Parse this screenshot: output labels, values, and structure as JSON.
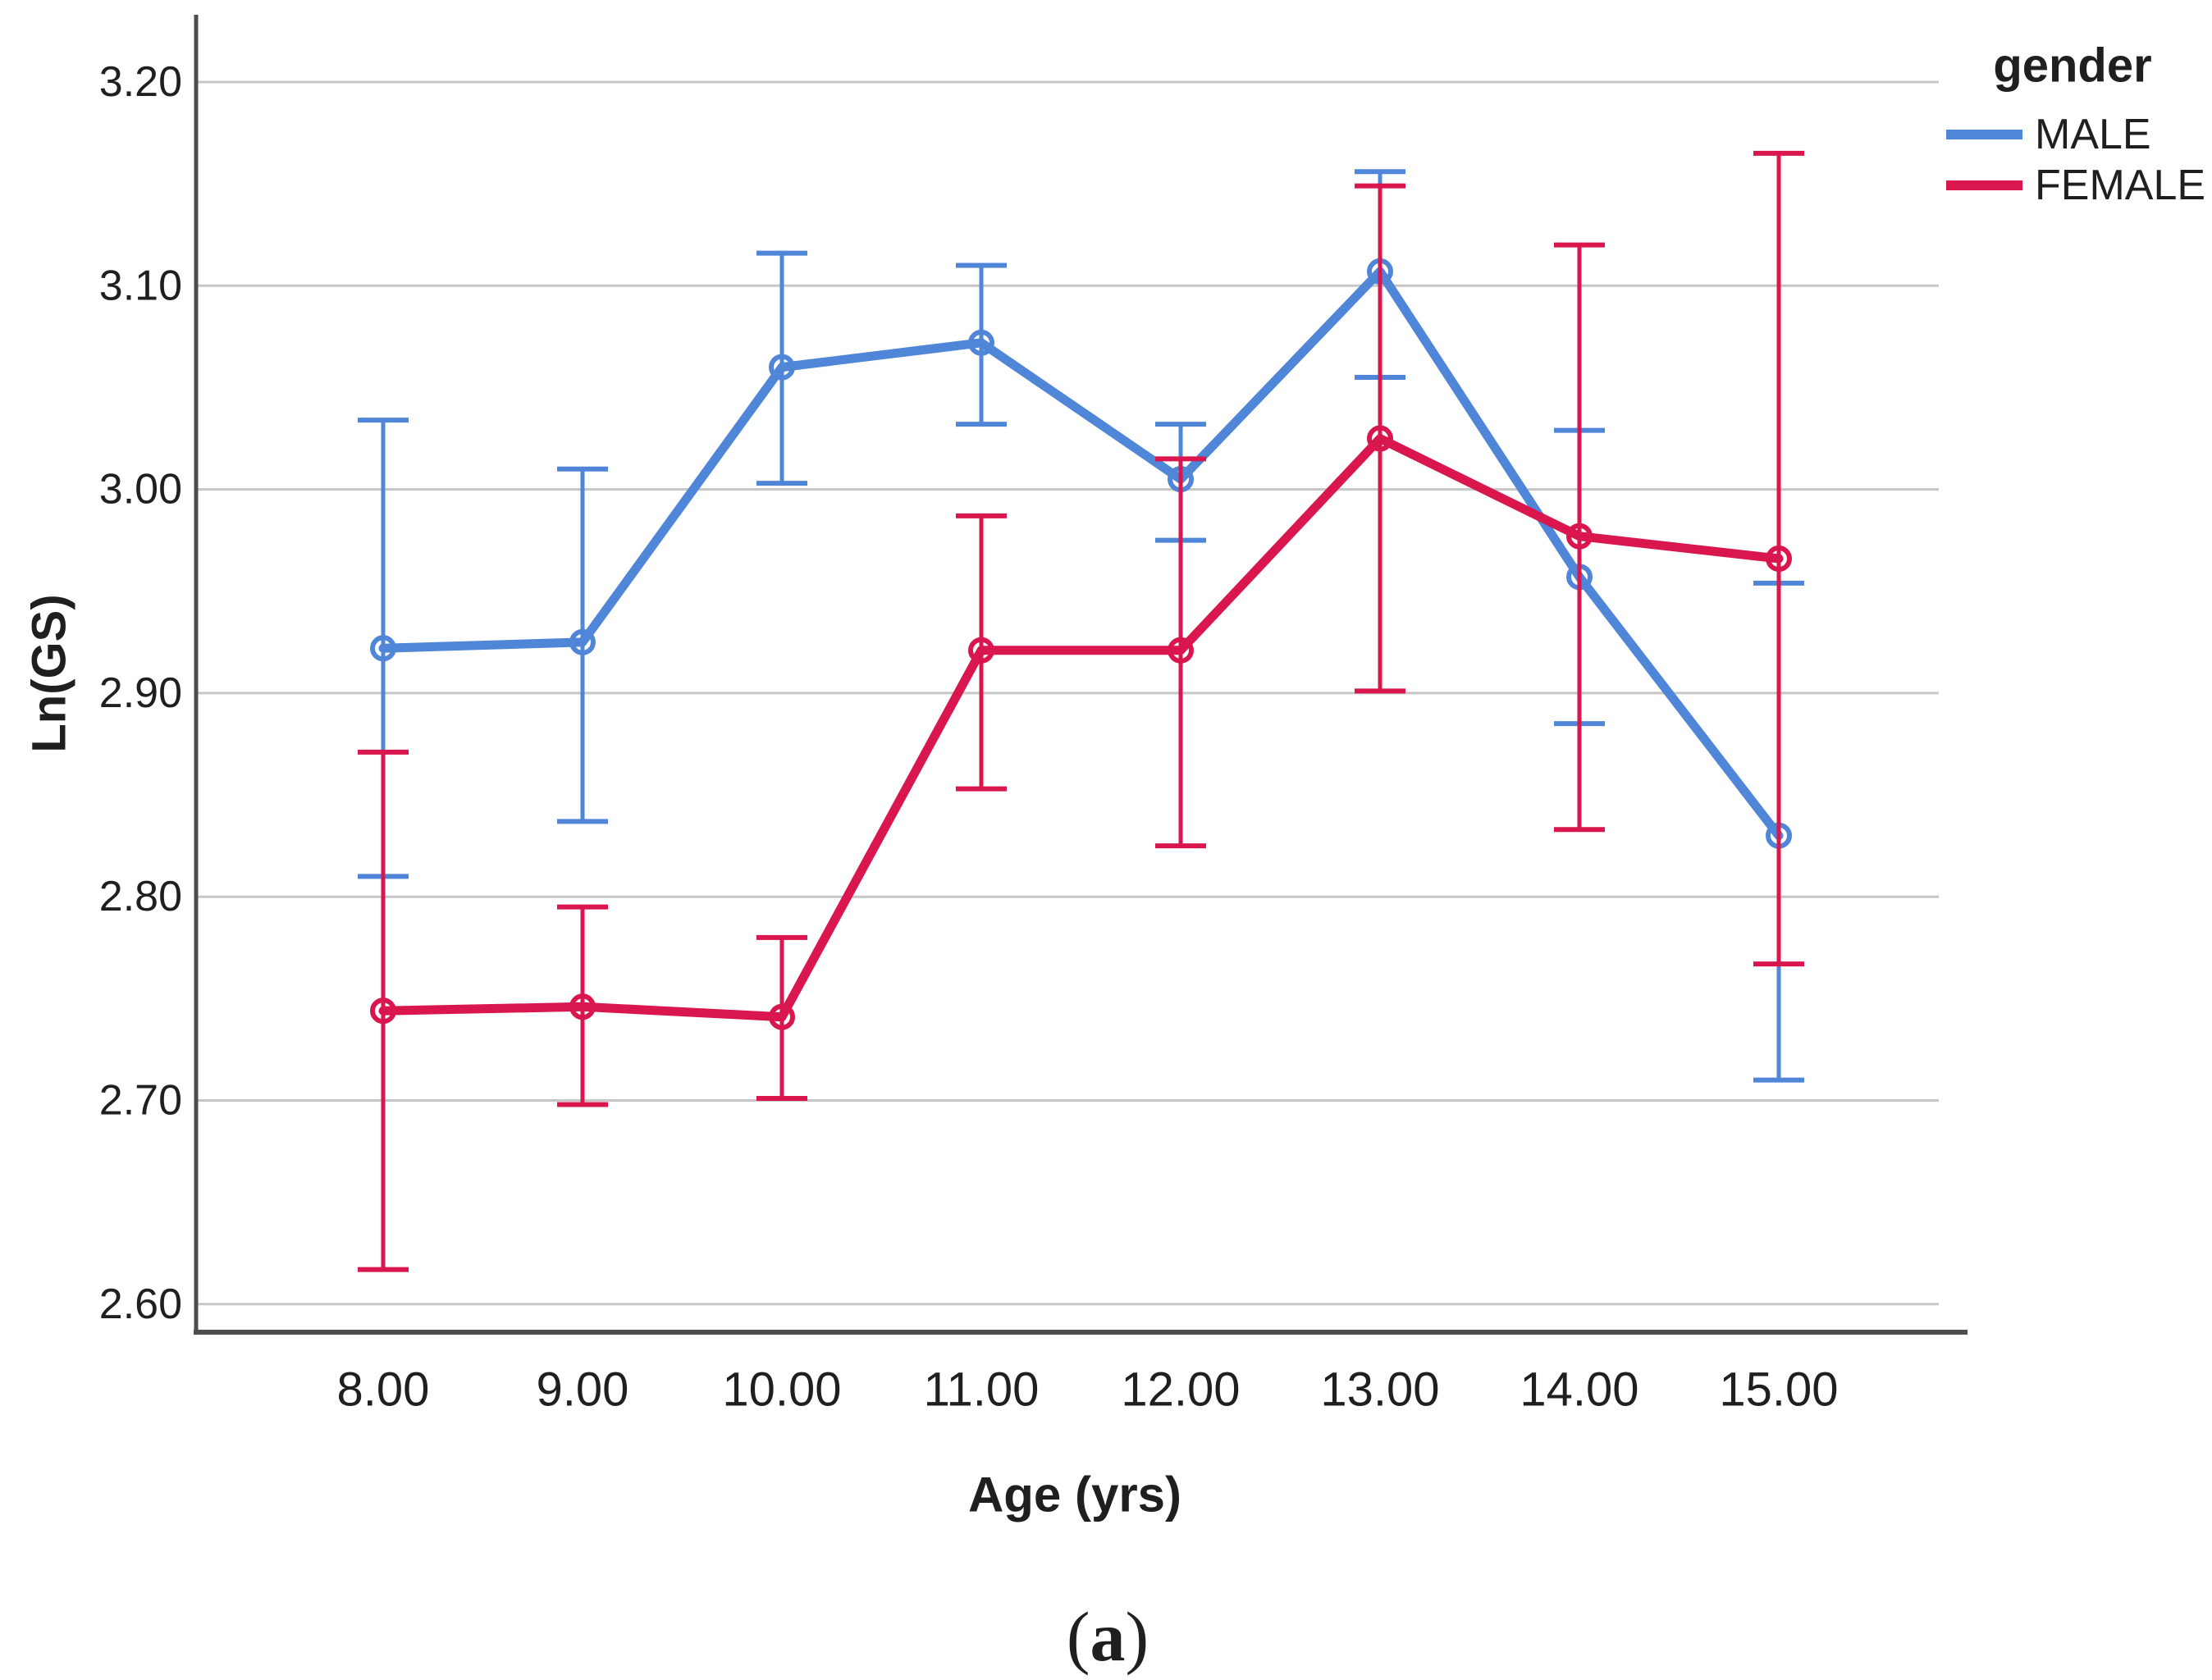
{
  "figure": {
    "caption_open": "(",
    "caption_letter": "a",
    "caption_close": ")"
  },
  "chart_data": {
    "type": "line",
    "title": "",
    "xlabel": "Age (yrs)",
    "ylabel": "Ln(GS)",
    "x_values": [
      8,
      9,
      10,
      11,
      12,
      13,
      14,
      15
    ],
    "x_tick_labels": [
      "8.00",
      "9.00",
      "10.00",
      "11.00",
      "12.00",
      "13.00",
      "14.00",
      "15.00"
    ],
    "y_tick_values": [
      2.6,
      2.7,
      2.8,
      2.9,
      3.0,
      3.1,
      3.2
    ],
    "y_tick_labels": [
      "2.60",
      "2.70",
      "2.80",
      "2.90",
      "3.00",
      "3.10",
      "3.20"
    ],
    "ylim": [
      2.6,
      3.2
    ],
    "grid": "horizontal-only",
    "error_bars": "vertical with caps (confidence intervals)",
    "marker": "open-circle",
    "legend": {
      "title": "gender",
      "position": "outside-top-right",
      "entries": [
        {
          "label": "MALE",
          "color": "#4f86d7"
        },
        {
          "label": "FEMALE",
          "color": "#d9174e"
        }
      ]
    },
    "series": [
      {
        "name": "MALE",
        "color": "#4f86d7",
        "means": [
          2.922,
          2.925,
          3.06,
          3.072,
          3.005,
          3.107,
          2.957,
          2.83
        ],
        "ci_low": [
          2.81,
          2.837,
          3.003,
          3.032,
          2.975,
          3.055,
          2.885,
          2.71
        ],
        "ci_high": [
          3.034,
          3.01,
          3.116,
          3.11,
          3.032,
          3.156,
          3.029,
          2.954
        ]
      },
      {
        "name": "FEMALE",
        "color": "#d9174e",
        "means": [
          2.744,
          2.746,
          2.741,
          2.921,
          2.921,
          3.025,
          2.977,
          2.966
        ],
        "ci_low": [
          2.617,
          2.698,
          2.701,
          2.853,
          2.825,
          2.901,
          2.833,
          2.767
        ],
        "ci_high": [
          2.871,
          2.795,
          2.78,
          2.987,
          3.015,
          3.149,
          3.12,
          3.165
        ]
      }
    ],
    "colors": {
      "background": "#ffffff",
      "gridline": "#c6c6c6",
      "axis_line": "#4d4d4d",
      "text": "#1f1f1f"
    }
  }
}
